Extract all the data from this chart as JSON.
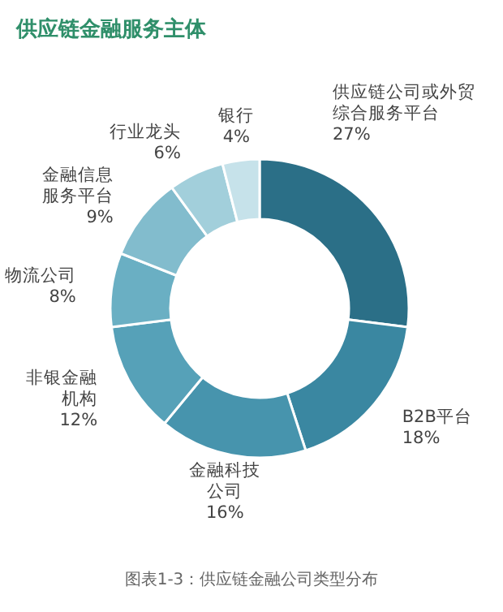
{
  "chart_data": {
    "type": "donut",
    "title": "供应链金融服务主体",
    "annotations": [
      "图表1-3：供应链金融公司类型分布"
    ],
    "categories": [
      "供应链公司或外贸综合服务平台",
      "B2B平台",
      "金融科技公司",
      "非银金融机构",
      "物流公司",
      "金融信息服务平台",
      "行业龙头",
      "银行"
    ],
    "values": [
      27,
      18,
      16,
      12,
      8,
      9,
      6,
      4
    ],
    "value_labels": [
      "27%",
      "18%",
      "16%",
      "12%",
      "8%",
      "9%",
      "6%",
      "4%"
    ],
    "colors": [
      "#2b6f87",
      "#3a87a1",
      "#4794ad",
      "#56a1b8",
      "#6aafc3",
      "#82bccd",
      "#a2cfdb",
      "#c6e2ea"
    ]
  }
}
